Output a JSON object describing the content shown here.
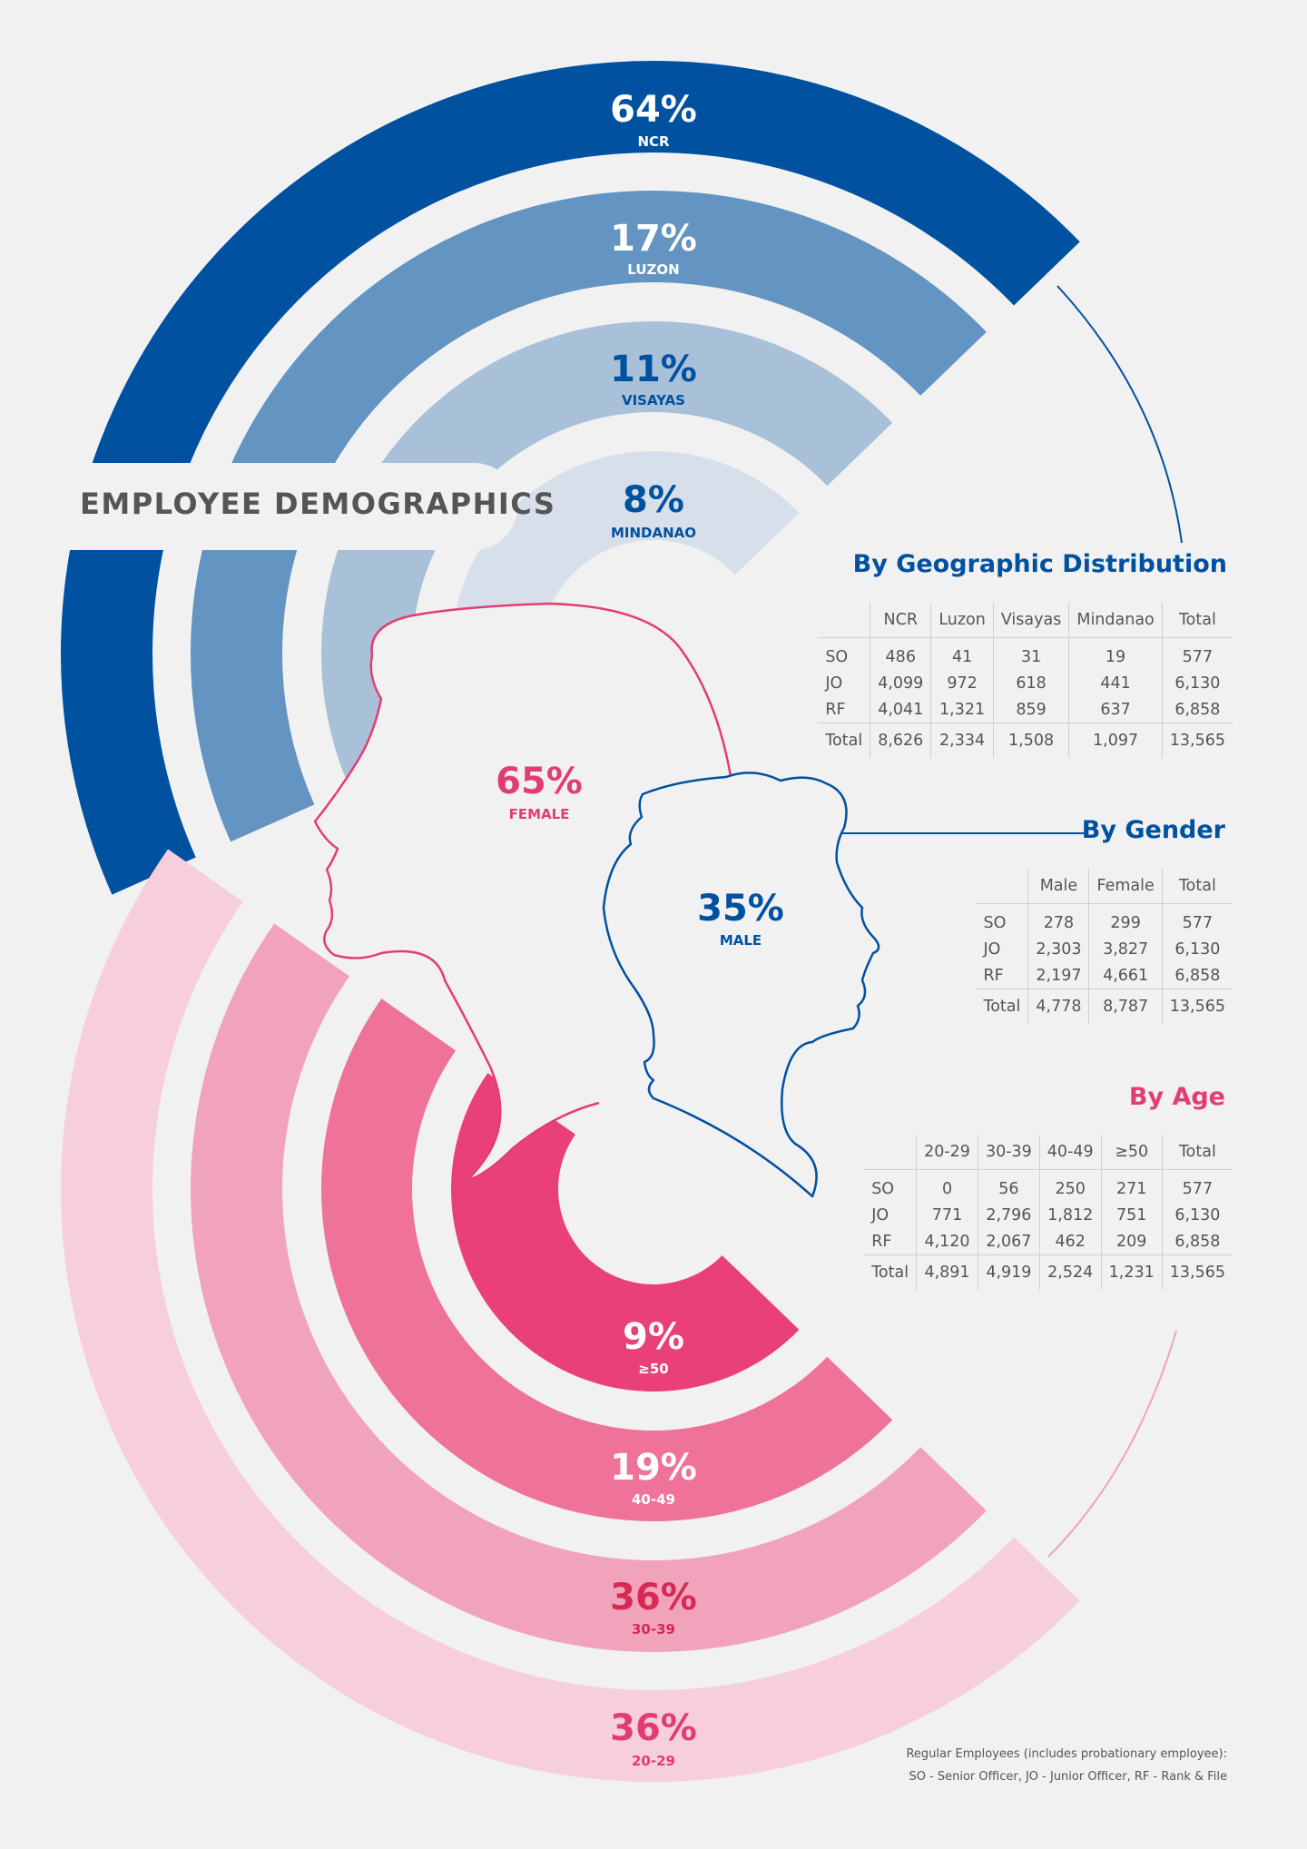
{
  "title": "EMPLOYEE DEMOGRAPHICS",
  "colors": {
    "ncr": "#0051a0",
    "luzon": "#6394c2",
    "visayas": "#a9c0d9",
    "mindanao": "#d7e0ea",
    "age_20_29": "#f7cfdb",
    "age_30_39": "#f2a3bc",
    "age_40_49": "#ef7399",
    "age_50_plus": "#ea407a",
    "pink_text": "#e23d73",
    "red_text": "#d62a54",
    "blue_text": "#0051a0"
  },
  "chart_data": [
    {
      "type": "donut",
      "title": "By Geographic Distribution",
      "segments": [
        {
          "label": "NCR",
          "percent": 64,
          "display": "64%"
        },
        {
          "label": "LUZON",
          "percent": 17,
          "display": "17%"
        },
        {
          "label": "VISAYAS",
          "percent": 11,
          "display": "11%"
        },
        {
          "label": "MINDANAO",
          "percent": 8,
          "display": "8%"
        }
      ],
      "table": {
        "columns": [
          "",
          "NCR",
          "Luzon",
          "Visayas",
          "Mindanao",
          "Total"
        ],
        "rows": [
          [
            "SO",
            "486",
            "41",
            "31",
            "19",
            "577"
          ],
          [
            "JO",
            "4,099",
            "972",
            "618",
            "441",
            "6,130"
          ],
          [
            "RF",
            "4,041",
            "1,321",
            "859",
            "637",
            "6,858"
          ]
        ],
        "total": [
          "Total",
          "8,626",
          "2,334",
          "1,508",
          "1,097",
          "13,565"
        ]
      }
    },
    {
      "type": "pie",
      "title": "By Gender",
      "segments": [
        {
          "label": "FEMALE",
          "percent": 65,
          "display": "65%"
        },
        {
          "label": "MALE",
          "percent": 35,
          "display": "35%"
        }
      ],
      "table": {
        "columns": [
          "",
          "Male",
          "Female",
          "Total"
        ],
        "rows": [
          [
            "SO",
            "278",
            "299",
            "577"
          ],
          [
            "JO",
            "2,303",
            "3,827",
            "6,130"
          ],
          [
            "RF",
            "2,197",
            "4,661",
            "6,858"
          ]
        ],
        "total": [
          "Total",
          "4,778",
          "8,787",
          "13,565"
        ]
      }
    },
    {
      "type": "donut",
      "title": "By Age",
      "segments": [
        {
          "label": "≥50",
          "percent": 9,
          "display": "9%"
        },
        {
          "label": "40-49",
          "percent": 19,
          "display": "19%"
        },
        {
          "label": "30-39",
          "percent": 36,
          "display": "36%"
        },
        {
          "label": "20-29",
          "percent": 36,
          "display": "36%"
        }
      ],
      "table": {
        "columns": [
          "",
          "20-29",
          "30-39",
          "40-49",
          "≥50",
          "Total"
        ],
        "rows": [
          [
            "SO",
            "0",
            "56",
            "250",
            "271",
            "577"
          ],
          [
            "JO",
            "771",
            "2,796",
            "1,812",
            "751",
            "6,130"
          ],
          [
            "RF",
            "4,120",
            "2,067",
            "462",
            "209",
            "6,858"
          ]
        ],
        "total": [
          "Total",
          "4,891",
          "4,919",
          "2,524",
          "1,231",
          "13,565"
        ]
      }
    }
  ],
  "footnote": {
    "line1": "Regular Employees (includes probationary employee):",
    "line2": "SO - Senior Officer, JO - Junior Officer, RF - Rank & File"
  }
}
